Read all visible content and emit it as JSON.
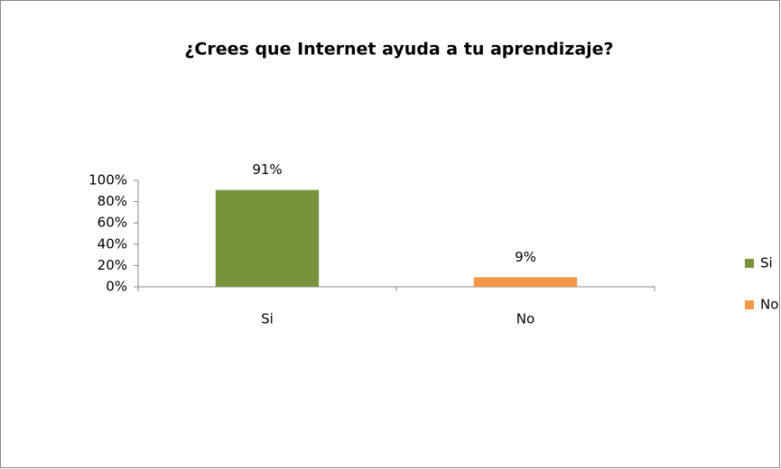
{
  "chart_data": {
    "type": "bar",
    "title": "¿Crees que Internet ayuda a tu aprendizaje?",
    "categories": [
      "Si",
      "No"
    ],
    "values": [
      91,
      9
    ],
    "value_labels": [
      "91%",
      "9%"
    ],
    "colors": [
      "#77933c",
      "#f79646"
    ],
    "ylim": [
      0,
      100
    ],
    "yticks": [
      {
        "value": 0,
        "label": "0%"
      },
      {
        "value": 20,
        "label": "20%"
      },
      {
        "value": 40,
        "label": "40%"
      },
      {
        "value": 60,
        "label": "60%"
      },
      {
        "value": 80,
        "label": "80%"
      },
      {
        "value": 100,
        "label": "100%"
      }
    ],
    "legend": "right"
  }
}
